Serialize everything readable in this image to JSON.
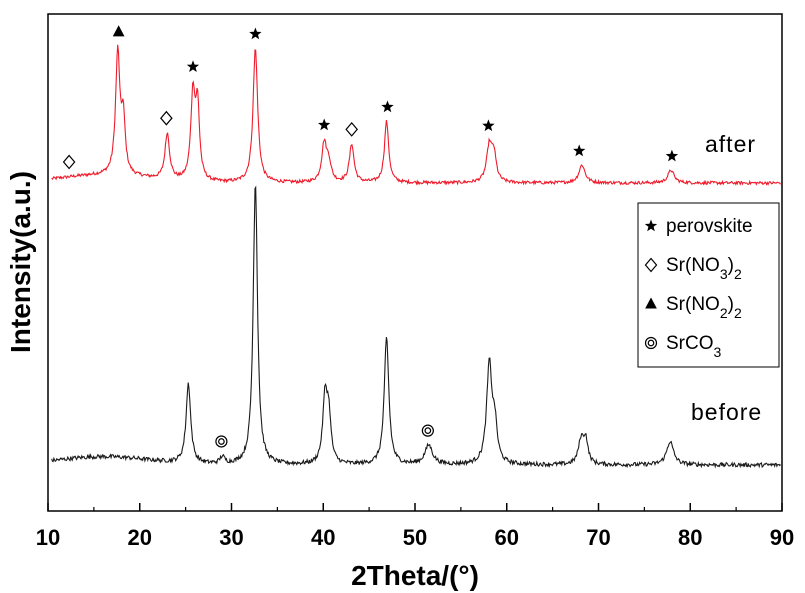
{
  "chart_data": {
    "type": "line",
    "xlabel": "2Theta/(°)",
    "ylabel": "Intensity(a.u.)",
    "xlim": [
      10,
      90
    ],
    "xticks": [
      10,
      20,
      30,
      40,
      50,
      60,
      70,
      80,
      90
    ],
    "yticks_shown": false,
    "grid": false,
    "legend_position": "right-middle",
    "series": [
      {
        "name": "after",
        "color": "#ee1c2c",
        "baseline": 0.12,
        "noise": 0.012,
        "peaks": [
          {
            "x": 17.6,
            "h": 0.95,
            "w": 0.28
          },
          {
            "x": 18.2,
            "h": 0.42,
            "w": 0.25
          },
          {
            "x": 23.0,
            "h": 0.36,
            "w": 0.3
          },
          {
            "x": 25.8,
            "h": 0.67,
            "w": 0.28
          },
          {
            "x": 26.3,
            "h": 0.56,
            "w": 0.25
          },
          {
            "x": 32.6,
            "h": 1.05,
            "w": 0.3
          },
          {
            "x": 40.1,
            "h": 0.3,
            "w": 0.32
          },
          {
            "x": 40.6,
            "h": 0.14,
            "w": 0.3
          },
          {
            "x": 43.1,
            "h": 0.3,
            "w": 0.3
          },
          {
            "x": 46.9,
            "h": 0.48,
            "w": 0.28
          },
          {
            "x": 58.1,
            "h": 0.28,
            "w": 0.35
          },
          {
            "x": 58.6,
            "h": 0.2,
            "w": 0.3
          },
          {
            "x": 68.2,
            "h": 0.14,
            "w": 0.4
          },
          {
            "x": 77.9,
            "h": 0.1,
            "w": 0.4
          }
        ]
      },
      {
        "name": "before",
        "color": "#1a1a1a",
        "baseline": 0.14,
        "noise": 0.015,
        "peaks": [
          {
            "x": 25.3,
            "h": 0.58,
            "w": 0.3
          },
          {
            "x": 29.0,
            "h": 0.05,
            "w": 0.3
          },
          {
            "x": 32.6,
            "h": 2.05,
            "w": 0.28
          },
          {
            "x": 40.2,
            "h": 0.47,
            "w": 0.3
          },
          {
            "x": 40.6,
            "h": 0.32,
            "w": 0.28
          },
          {
            "x": 46.9,
            "h": 0.92,
            "w": 0.3
          },
          {
            "x": 51.5,
            "h": 0.14,
            "w": 0.5
          },
          {
            "x": 58.1,
            "h": 0.72,
            "w": 0.35
          },
          {
            "x": 58.7,
            "h": 0.25,
            "w": 0.3
          },
          {
            "x": 68.1,
            "h": 0.17,
            "w": 0.35
          },
          {
            "x": 68.6,
            "h": 0.17,
            "w": 0.3
          },
          {
            "x": 77.8,
            "h": 0.17,
            "w": 0.45
          }
        ]
      }
    ],
    "annotations": [
      {
        "series": "after",
        "x": 12.3,
        "symbol": "diamond"
      },
      {
        "series": "after",
        "x": 17.7,
        "symbol": "triangle"
      },
      {
        "series": "after",
        "x": 22.9,
        "symbol": "diamond"
      },
      {
        "series": "after",
        "x": 25.8,
        "symbol": "star"
      },
      {
        "series": "after",
        "x": 32.6,
        "symbol": "star"
      },
      {
        "series": "after",
        "x": 40.1,
        "symbol": "star"
      },
      {
        "series": "after",
        "x": 43.1,
        "symbol": "diamond"
      },
      {
        "series": "after",
        "x": 47.0,
        "symbol": "star"
      },
      {
        "series": "after",
        "x": 58.0,
        "symbol": "star"
      },
      {
        "series": "after",
        "x": 67.9,
        "symbol": "star"
      },
      {
        "series": "after",
        "x": 78.0,
        "symbol": "star"
      },
      {
        "series": "before",
        "x": 28.9,
        "symbol": "circle"
      },
      {
        "series": "before",
        "x": 51.4,
        "symbol": "circle"
      }
    ],
    "legend": [
      {
        "symbol": "star",
        "label": "perovskite"
      },
      {
        "symbol": "diamond",
        "label": "Sr(NO",
        "sub": "3",
        "post": ")",
        "sub2": "2"
      },
      {
        "symbol": "triangle",
        "label": "Sr(NO",
        "sub": "2",
        "post": ")",
        "sub2": "2"
      },
      {
        "symbol": "circle",
        "label": "SrCO",
        "sub": "3",
        "post": "",
        "sub2": ""
      }
    ]
  }
}
